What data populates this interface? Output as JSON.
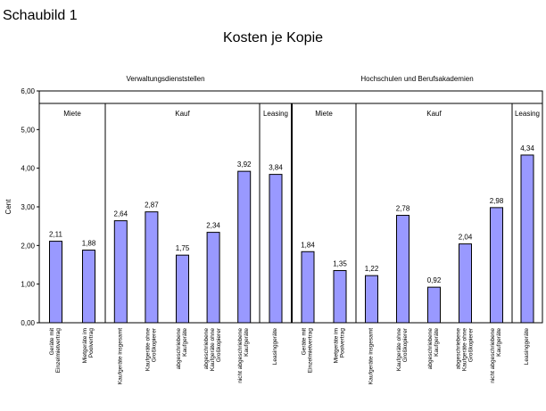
{
  "figure_label": "Schaubild 1",
  "chart_data": {
    "type": "bar",
    "title": "Kosten je Kopie",
    "ylabel": "Cent",
    "xlabel": "",
    "ylim": [
      0,
      6
    ],
    "yticks": [
      "0,00",
      "1,00",
      "2,00",
      "3,00",
      "4,00",
      "5,00",
      "6,00"
    ],
    "bar_color": "#9999ff",
    "groups": [
      {
        "name": "Verwaltungsdienststellen",
        "sections": [
          {
            "name": "Miete",
            "bars": [
              {
                "label": "Geräte mit Einzelmietvertrag",
                "value": 2.11,
                "value_label": "2,11"
              },
              {
                "label": "Mietgeräte im Poolvertrag",
                "value": 1.88,
                "value_label": "1,88"
              }
            ]
          },
          {
            "name": "Kauf",
            "bars": [
              {
                "label": "Kaufgeräte insgesamt",
                "value": 2.64,
                "value_label": "2,64"
              },
              {
                "label": "Kaufgeräte ohne Großkopierer",
                "value": 2.87,
                "value_label": "2,87"
              },
              {
                "label": "abgeschriebene Kaufgeräte",
                "value": 1.75,
                "value_label": "1,75"
              },
              {
                "label": "abgeschriebene Kaufgeräte ohne Großkopierer",
                "value": 2.34,
                "value_label": "2,34"
              },
              {
                "label": "nicht abgeschriebene Kaufgeräte",
                "value": 3.92,
                "value_label": "3,92"
              }
            ]
          },
          {
            "name": "Leasing",
            "bars": [
              {
                "label": "Leasinggeräte",
                "value": 3.84,
                "value_label": "3,84"
              }
            ]
          }
        ]
      },
      {
        "name": "Hochschulen und Berufsakademien",
        "sections": [
          {
            "name": "Miete",
            "bars": [
              {
                "label": "Geräte mit Einzelmietvertrag",
                "value": 1.84,
                "value_label": "1,84"
              },
              {
                "label": "Mietgeräte im Poolvertrag",
                "value": 1.35,
                "value_label": "1,35"
              }
            ]
          },
          {
            "name": "Kauf",
            "bars": [
              {
                "label": "Kaufgeräte insgesamt",
                "value": 1.22,
                "value_label": "1,22"
              },
              {
                "label": "Kaufgeräte ohne Großkopierer",
                "value": 2.78,
                "value_label": "2,78"
              },
              {
                "label": "abgeschriebene Kaufgeräte",
                "value": 0.92,
                "value_label": "0,92"
              },
              {
                "label": "abgeschriebene Kaufgeräte ohne Großkopierer",
                "value": 2.04,
                "value_label": "2,04"
              },
              {
                "label": "nicht abgeschriebene Kaufgeräte",
                "value": 2.98,
                "value_label": "2,98"
              }
            ]
          },
          {
            "name": "Leasing",
            "bars": [
              {
                "label": "Leasinggeräte",
                "value": 4.34,
                "value_label": "4,34"
              }
            ]
          }
        ]
      }
    ]
  }
}
